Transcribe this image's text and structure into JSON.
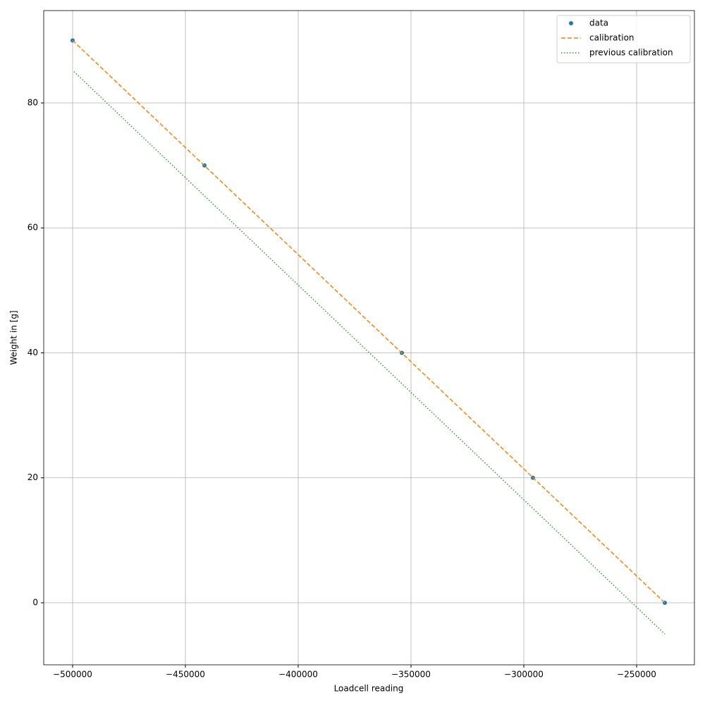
{
  "chart_data": {
    "type": "scatter",
    "xlabel": "Loadcell reading",
    "ylabel": "Weight in [g]",
    "xlim": [
      -512812,
      -224375
    ],
    "ylim": [
      -9.93,
      94.78
    ],
    "xticks": [
      {
        "value": -500000,
        "label": "−500000"
      },
      {
        "value": -450000,
        "label": "−450000"
      },
      {
        "value": -400000,
        "label": "−400000"
      },
      {
        "value": -350000,
        "label": "−350000"
      },
      {
        "value": -300000,
        "label": "−300000"
      },
      {
        "value": -250000,
        "label": "−250000"
      }
    ],
    "yticks": [
      0,
      20,
      40,
      60,
      80
    ],
    "grid": true,
    "legend": "upper right",
    "series": [
      {
        "name": "data",
        "color": "#1f77b4",
        "style": "markers",
        "x": [
          -500000,
          -441562,
          -354062,
          -295937,
          -237500
        ],
        "values": [
          90,
          70,
          40,
          20,
          0
        ]
      },
      {
        "name": "calibration",
        "color": "#ff7f0e",
        "style": "dashed",
        "x": [
          -500000,
          -237500
        ],
        "values": [
          90,
          0
        ]
      },
      {
        "name": "previous calibration",
        "color": "#2ca02c",
        "style": "dotted",
        "x": [
          -499375,
          -237500
        ],
        "values": [
          85,
          -5
        ]
      }
    ]
  }
}
